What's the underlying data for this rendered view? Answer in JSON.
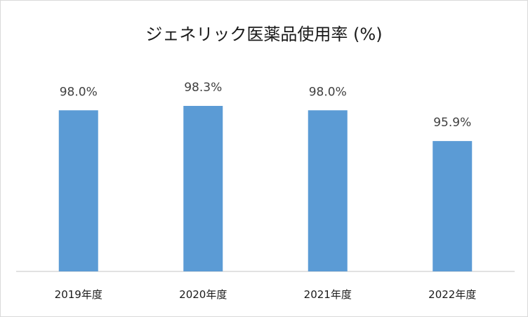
{
  "chart_data": {
    "type": "bar",
    "title": "ジェネリック医薬品使用率 (%)",
    "categories": [
      "2019年度",
      "2020年度",
      "2021年度",
      "2022年度"
    ],
    "values": [
      98.0,
      98.3,
      98.0,
      95.9
    ],
    "data_labels": [
      "98.0%",
      "98.3%",
      "98.0%",
      "95.9%"
    ],
    "xlabel": "",
    "ylabel": "",
    "ylim": [
      87.0,
      99.0
    ],
    "grid": false,
    "legend": "none",
    "bar_color": "#5b9bd5",
    "axis_color": "#d9d9d9"
  }
}
